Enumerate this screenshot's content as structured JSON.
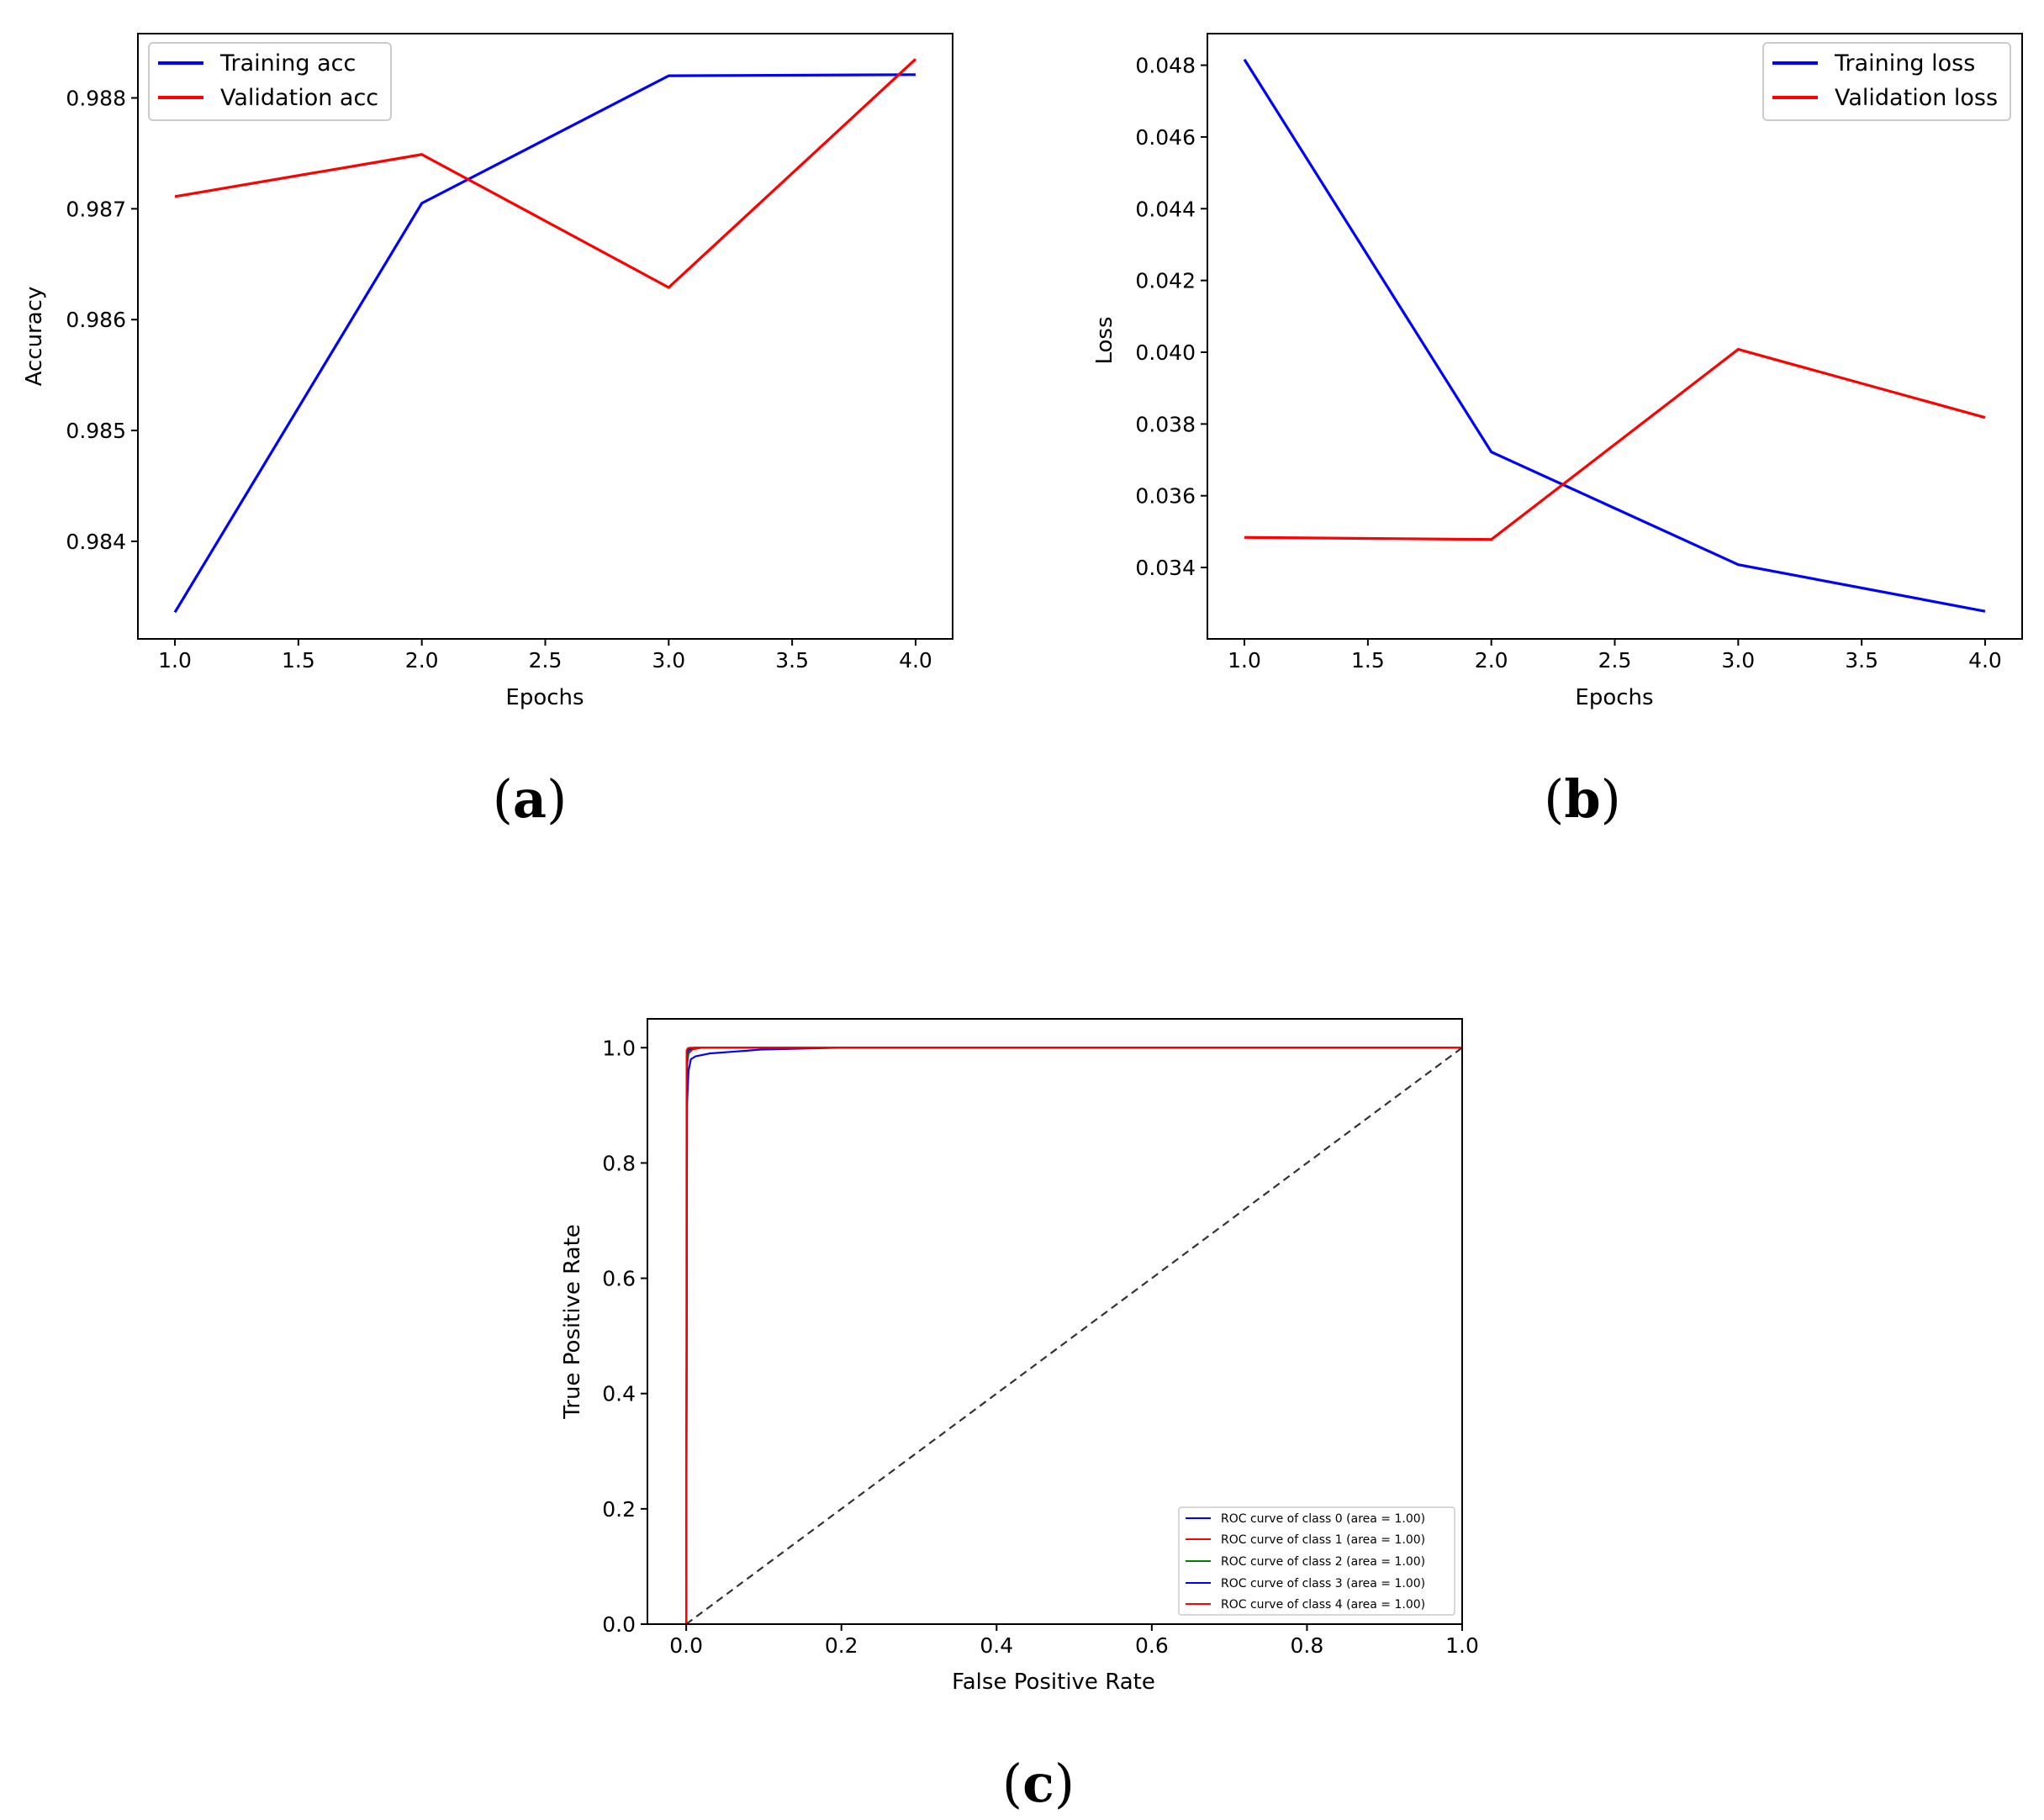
{
  "chart_data": [
    {
      "id": "a",
      "type": "line",
      "panel_label": "a",
      "xlabel": "Epochs",
      "ylabel": "Accuracy",
      "xlim": [
        0.85,
        4.15
      ],
      "ylim": [
        0.98312,
        0.98858
      ],
      "xticks": [
        1.0,
        1.5,
        2.0,
        2.5,
        3.0,
        3.5,
        4.0
      ],
      "xtick_labels": [
        "1.0",
        "1.5",
        "2.0",
        "2.5",
        "3.0",
        "3.5",
        "4.0"
      ],
      "yticks": [
        0.984,
        0.985,
        0.986,
        0.987,
        0.988
      ],
      "ytick_labels": [
        "0.984",
        "0.985",
        "0.986",
        "0.987",
        "0.988"
      ],
      "legend_position": "upper-left",
      "series": [
        {
          "name": "Training acc",
          "color": "#0000ff",
          "x": [
            1,
            2,
            3,
            4
          ],
          "y": [
            0.98336,
            0.98705,
            0.9882,
            0.98821
          ]
        },
        {
          "name": "Validation acc",
          "color": "#ff0000",
          "x": [
            1,
            2,
            3,
            4
          ],
          "y": [
            0.98711,
            0.98749,
            0.98629,
            0.98835
          ]
        }
      ]
    },
    {
      "id": "b",
      "type": "line",
      "panel_label": "b",
      "xlabel": "Epochs",
      "ylabel": "Loss",
      "xlim": [
        0.85,
        4.15
      ],
      "ylim": [
        0.03201,
        0.04888
      ],
      "xticks": [
        1.0,
        1.5,
        2.0,
        2.5,
        3.0,
        3.5,
        4.0
      ],
      "xtick_labels": [
        "1.0",
        "1.5",
        "2.0",
        "2.5",
        "3.0",
        "3.5",
        "4.0"
      ],
      "yticks": [
        0.034,
        0.036,
        0.038,
        0.04,
        0.042,
        0.044,
        0.046,
        0.048
      ],
      "ytick_labels": [
        "0.034",
        "0.036",
        "0.038",
        "0.040",
        "0.042",
        "0.044",
        "0.046",
        "0.048"
      ],
      "legend_position": "upper-right",
      "series": [
        {
          "name": "Training loss",
          "color": "#0000ff",
          "x": [
            1,
            2,
            3,
            4
          ],
          "y": [
            0.04816,
            0.03722,
            0.03408,
            0.03278
          ]
        },
        {
          "name": "Validation loss",
          "color": "#ff0000",
          "x": [
            1,
            2,
            3,
            4
          ],
          "y": [
            0.03484,
            0.03478,
            0.04008,
            0.03818
          ]
        }
      ]
    },
    {
      "id": "c",
      "type": "line",
      "panel_label": "c",
      "xlabel": "False Positive Rate",
      "ylabel": "True Positive Rate",
      "xlim": [
        -0.05,
        1.0
      ],
      "ylim": [
        0.0,
        1.05
      ],
      "xticks": [
        0.0,
        0.2,
        0.4,
        0.6,
        0.8,
        1.0
      ],
      "xtick_labels": [
        "0.0",
        "0.2",
        "0.4",
        "0.6",
        "0.8",
        "1.0"
      ],
      "yticks": [
        0.0,
        0.2,
        0.4,
        0.6,
        0.8,
        1.0
      ],
      "ytick_labels": [
        "0.0",
        "0.2",
        "0.4",
        "0.6",
        "0.8",
        "1.0"
      ],
      "legend_position": "lower-right",
      "series": [
        {
          "name": "ROC curve of class 0 (area = 1.00)",
          "color": "#0000ff",
          "x": [
            0,
            0.001,
            0.003,
            0.006,
            0.012,
            0.03,
            0.06,
            0.1,
            0.2,
            1.0
          ],
          "y": [
            0,
            0.9,
            0.96,
            0.98,
            0.985,
            0.99,
            0.993,
            0.997,
            1.0,
            1.0
          ]
        },
        {
          "name": "ROC curve of class 1 (area = 1.00)",
          "color": "#ff0000",
          "x": [
            0,
            0.001,
            0.003,
            0.008,
            0.02,
            1.0
          ],
          "y": [
            0,
            0.97,
            0.99,
            0.997,
            1.0,
            1.0
          ]
        },
        {
          "name": "ROC curve of class 2 (area = 1.00)",
          "color": "#008000",
          "x": [
            0,
            0.001,
            0.004,
            0.01,
            1.0
          ],
          "y": [
            0,
            0.98,
            0.995,
            1.0,
            1.0
          ]
        },
        {
          "name": "ROC curve of class 3 (area = 1.00)",
          "color": "#0000ff",
          "x": [
            0,
            0.001,
            0.003,
            0.01,
            1.0
          ],
          "y": [
            0,
            0.99,
            0.997,
            1.0,
            1.0
          ]
        },
        {
          "name": "ROC curve of class 4 (area = 1.00)",
          "color": "#ff0000",
          "x": [
            0,
            0.0005,
            0.002,
            0.005,
            1.0
          ],
          "y": [
            0,
            0.995,
            0.999,
            1.0,
            1.0
          ]
        }
      ],
      "reference_line": {
        "x": [
          0,
          1
        ],
        "y": [
          0,
          1
        ],
        "color": "#333333",
        "style": "dashed"
      }
    }
  ]
}
